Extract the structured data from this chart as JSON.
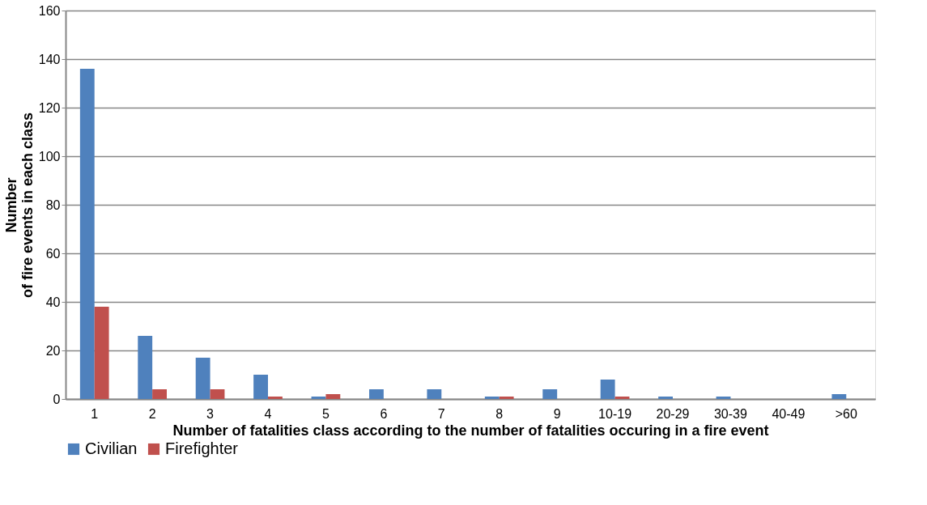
{
  "chart_data": {
    "type": "bar",
    "xlabel": "Number of fatalities class according to the number of fatalities occuring in a fire event",
    "ylabel": "Number\nof fire events in each class",
    "categories": [
      "1",
      "2",
      "3",
      "4",
      "5",
      "6",
      "7",
      "8",
      "9",
      "10-19",
      "20-29",
      "30-39",
      "40-49",
      ">60"
    ],
    "series": [
      {
        "name": "Civilian",
        "color": "#4f81bd",
        "values": [
          136,
          26,
          17,
          10,
          1,
          4,
          4,
          1,
          4,
          8,
          1,
          1,
          0,
          2
        ]
      },
      {
        "name": "Firefighter",
        "color": "#c0504d",
        "values": [
          38,
          4,
          4,
          1,
          2,
          0,
          0,
          1,
          0,
          1,
          0,
          0,
          0,
          0
        ]
      }
    ],
    "ylim": [
      0,
      160
    ],
    "yticks": [
      0,
      20,
      40,
      60,
      80,
      100,
      120,
      140,
      160
    ],
    "grid": "y",
    "legend": "bottom"
  }
}
